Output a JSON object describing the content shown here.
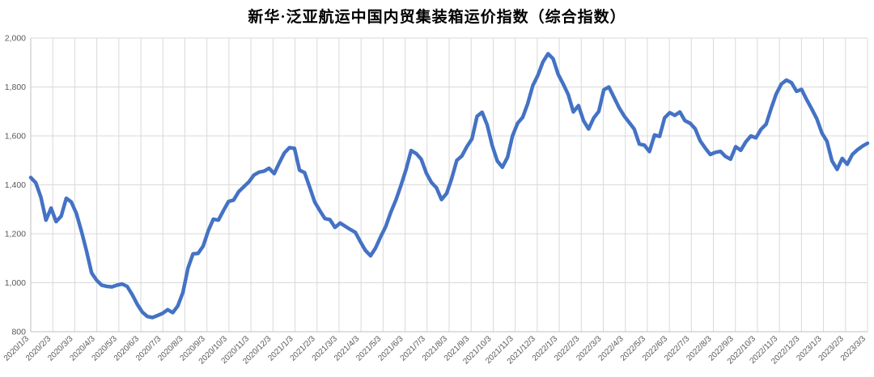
{
  "chart": {
    "title": "新华·泛亚航运中国内贸集装箱运价指数（综合指数）"
  },
  "chart_data": {
    "type": "line",
    "title": "新华·泛亚航运中国内贸集装箱运价指数（综合指数）",
    "xlabel": "",
    "ylabel": "",
    "ylim": [
      800,
      2000
    ],
    "grid": true,
    "legend_position": "none",
    "colors": {
      "line": "#4472C4",
      "grid": "#D9D9D9",
      "axis": "#BFBFBF",
      "tick_text": "#595959",
      "title_text": "#000000",
      "background": "#FFFFFF"
    },
    "y_axis": [
      {
        "value": 800,
        "label": "800"
      },
      {
        "value": 1000,
        "label": "1,000"
      },
      {
        "value": 1200,
        "label": "1,200"
      },
      {
        "value": 1400,
        "label": "1,400"
      },
      {
        "value": 1600,
        "label": "1,600"
      },
      {
        "value": 1800,
        "label": "1,800"
      },
      {
        "value": 2000,
        "label": "2,000"
      }
    ],
    "x_labels": [
      "2020/1/3",
      "2020/2/3",
      "2020/3/3",
      "2020/4/3",
      "2020/5/3",
      "2020/6/3",
      "2020/7/3",
      "2020/8/3",
      "2020/9/3",
      "2020/10/3",
      "2020/11/3",
      "2020/12/3",
      "2021/1/3",
      "2021/2/3",
      "2021/3/3",
      "2021/4/3",
      "2021/5/3",
      "2021/6/3",
      "2021/7/3",
      "2021/8/3",
      "2021/9/3",
      "2021/10/3",
      "2021/11/3",
      "2021/12/3",
      "2022/1/3",
      "2022/2/3",
      "2022/3/3",
      "2022/4/3",
      "2022/5/3",
      "2022/6/3",
      "2022/7/3",
      "2022/8/3",
      "2022/9/3",
      "2022/10/3",
      "2022/11/3",
      "2022/12/3",
      "2023/1/3",
      "2023/2/3",
      "2023/3/3"
    ],
    "x_frequency": "weekly",
    "series": [
      {
        "name": "综合指数",
        "color": "#4472C4",
        "values": [
          1430,
          1408,
          1350,
          1256,
          1305,
          1250,
          1272,
          1345,
          1330,
          1283,
          1210,
          1130,
          1040,
          1010,
          990,
          985,
          983,
          990,
          995,
          985,
          952,
          912,
          880,
          862,
          858,
          866,
          875,
          890,
          878,
          905,
          960,
          1060,
          1118,
          1120,
          1150,
          1212,
          1260,
          1256,
          1295,
          1332,
          1338,
          1372,
          1392,
          1412,
          1440,
          1452,
          1456,
          1468,
          1446,
          1490,
          1530,
          1552,
          1549,
          1460,
          1450,
          1390,
          1330,
          1295,
          1262,
          1258,
          1226,
          1244,
          1231,
          1218,
          1206,
          1168,
          1132,
          1110,
          1142,
          1188,
          1230,
          1288,
          1338,
          1398,
          1462,
          1540,
          1528,
          1505,
          1448,
          1410,
          1388,
          1340,
          1365,
          1425,
          1500,
          1518,
          1556,
          1588,
          1680,
          1697,
          1645,
          1560,
          1498,
          1472,
          1512,
          1600,
          1652,
          1676,
          1732,
          1806,
          1848,
          1902,
          1936,
          1915,
          1852,
          1812,
          1768,
          1698,
          1724,
          1662,
          1628,
          1673,
          1700,
          1788,
          1800,
          1758,
          1716,
          1682,
          1655,
          1628,
          1567,
          1562,
          1536,
          1604,
          1598,
          1674,
          1695,
          1684,
          1698,
          1662,
          1652,
          1630,
          1580,
          1550,
          1524,
          1533,
          1537,
          1516,
          1505,
          1556,
          1541,
          1576,
          1600,
          1592,
          1627,
          1648,
          1712,
          1772,
          1812,
          1828,
          1818,
          1782,
          1790,
          1748,
          1710,
          1670,
          1612,
          1578,
          1498,
          1463,
          1508,
          1484,
          1524,
          1543,
          1558,
          1570
        ]
      }
    ]
  }
}
